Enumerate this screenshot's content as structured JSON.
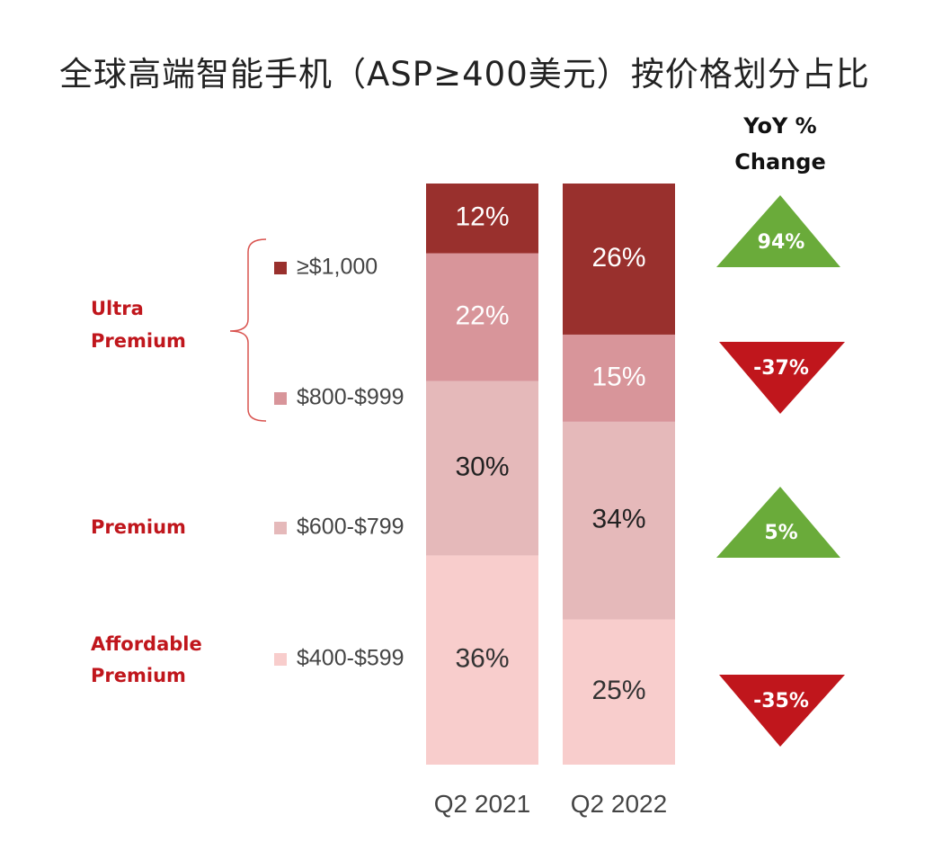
{
  "chart_data": {
    "type": "bar",
    "stacked": true,
    "title": "全球高端智能手机（ASP≥400美元）按价格划分占比",
    "categories": [
      "Q2 2021",
      "Q2 2022"
    ],
    "ylim": [
      0,
      100
    ],
    "unit": "%",
    "grid": false,
    "legend_placement": "left",
    "series": [
      {
        "name": "$400-$599",
        "values": [
          36,
          25
        ],
        "color": "#f8cdcc",
        "label_color": "#333333"
      },
      {
        "name": "$600-$799",
        "values": [
          30,
          34
        ],
        "color": "#e5b9ba",
        "label_color": "#222222"
      },
      {
        "name": "$800-$999",
        "values": [
          22,
          15
        ],
        "color": "#d8959a",
        "label_color": "#ffffff"
      },
      {
        "name": "≥$1,000",
        "values": [
          12,
          26
        ],
        "color": "#99302d",
        "label_color": "#ffffff"
      }
    ],
    "groups": [
      {
        "label_lines": [
          "Ultra",
          "Premium"
        ],
        "series": [
          "≥$1,000",
          "$800-$999"
        ]
      },
      {
        "label_lines": [
          "Premium"
        ],
        "series": [
          "$600-$799"
        ]
      },
      {
        "label_lines": [
          "Affordable",
          "Premium"
        ],
        "series": [
          "$400-$599"
        ]
      }
    ],
    "yoy": {
      "header_lines": [
        "YoY %",
        "Change"
      ],
      "items": [
        {
          "series": "≥$1,000",
          "label": "94%",
          "direction": "up",
          "color": "#6aab3a"
        },
        {
          "series": "$800-$999",
          "label": "-37%",
          "direction": "down",
          "color": "#c0161c"
        },
        {
          "series": "$600-$799",
          "label": "5%",
          "direction": "up",
          "color": "#6aab3a"
        },
        {
          "series": "$400-$599",
          "label": "-35%",
          "direction": "down",
          "color": "#c0161c"
        }
      ]
    }
  }
}
